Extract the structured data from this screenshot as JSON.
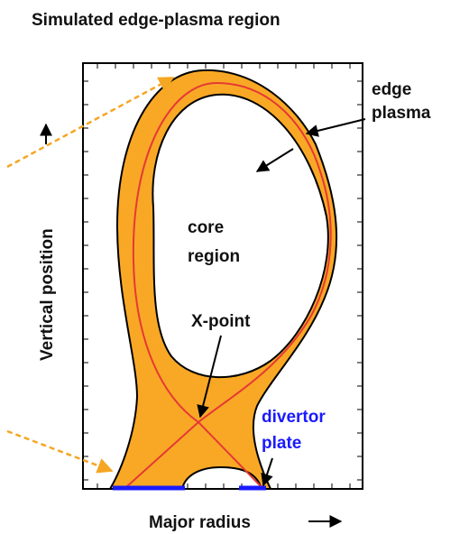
{
  "title": "Simulated edge-plasma region",
  "labels": {
    "edge_plasma": [
      "edge",
      "plasma"
    ],
    "core_region": [
      "core",
      "region"
    ],
    "x_point": "X-point",
    "divertor_plate": [
      "divertor",
      "plate"
    ]
  },
  "axes": {
    "vertical": "Vertical position",
    "horizontal": "Major radius"
  }
}
